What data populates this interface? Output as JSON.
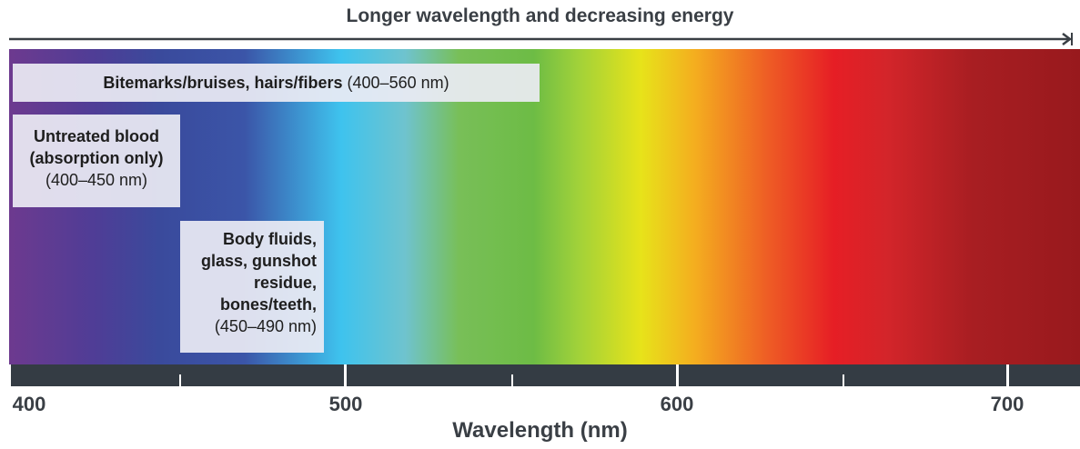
{
  "top_label": "Longer wavelength and decreasing energy",
  "boxes": {
    "bitemarks": {
      "bold": "Bitemarks/bruises, hairs/fibers",
      "range": "(400–560 nm)"
    },
    "blood": {
      "line1": "Untreated blood",
      "line2": "(absorption only)",
      "range": "(400–450 nm)"
    },
    "fluids": {
      "line1": "Body fluids,",
      "line2": "glass, gunshot",
      "line3": "residue,",
      "line4": "bones/teeth,",
      "range": "(450–490 nm)"
    }
  },
  "axis": {
    "ticks": [
      "400",
      "500",
      "600",
      "700"
    ],
    "label": "Wavelength (nm)"
  },
  "colors": {
    "axis_bar": "#343c44",
    "text": "#3a3f45",
    "box_fill": "#ecebf4"
  }
}
